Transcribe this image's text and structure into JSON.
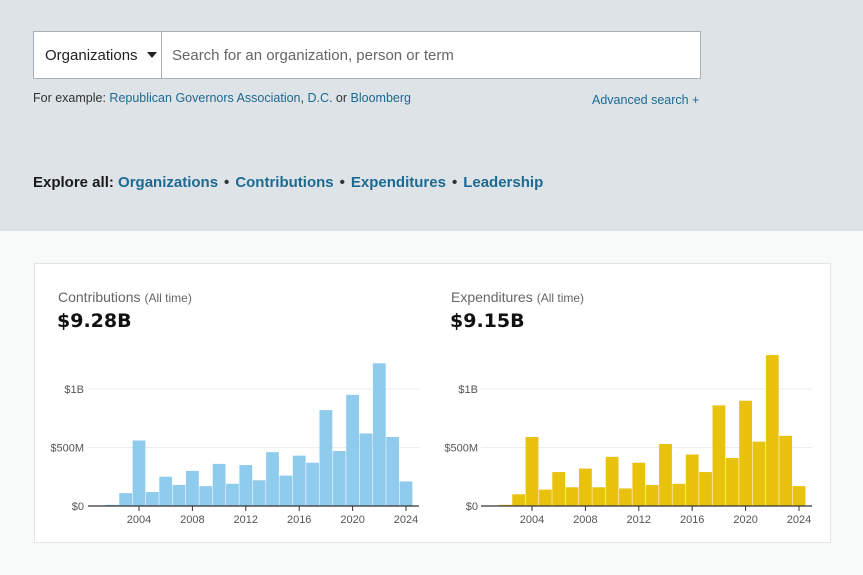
{
  "search": {
    "type_label": "Organizations",
    "placeholder": "Search for an organization, person or term",
    "value": "",
    "examples_prefix": "For example: ",
    "example_1": "Republican Governors Association",
    "sep_comma": ", ",
    "example_2": "D.C.",
    "sep_or": " or ",
    "example_3": "Bloomberg",
    "advanced_label": "Advanced search +"
  },
  "explore": {
    "label": "Explore all: ",
    "links": [
      "Organizations",
      "Contributions",
      "Expenditures",
      "Leadership"
    ],
    "separator": "•"
  },
  "colors": {
    "contributions": "#8fcbec",
    "expenditures": "#e8c20c",
    "link": "#1d6a93"
  },
  "chart_data": [
    {
      "type": "bar",
      "title": "Contributions",
      "subtitle": "(All time)",
      "total": "$9.28B",
      "xlabel": "",
      "ylabel": "",
      "unit": "billions USD",
      "ylim": [
        0,
        1.3
      ],
      "grid": true,
      "yticks": [
        0,
        0.5,
        1.0
      ],
      "ytick_labels": [
        "$0",
        "$500M",
        "$1B"
      ],
      "xticks": [
        2004,
        2008,
        2012,
        2016,
        2020,
        2024
      ],
      "xtick_labels": [
        "2004",
        "2008",
        "2012",
        "2016",
        "2020",
        "2024"
      ],
      "categories": [
        2002,
        2003,
        2004,
        2005,
        2006,
        2007,
        2008,
        2009,
        2010,
        2011,
        2012,
        2013,
        2014,
        2015,
        2016,
        2017,
        2018,
        2019,
        2020,
        2021,
        2022,
        2023,
        2024
      ],
      "values": [
        0.01,
        0.11,
        0.56,
        0.12,
        0.25,
        0.18,
        0.3,
        0.17,
        0.36,
        0.19,
        0.35,
        0.22,
        0.46,
        0.26,
        0.43,
        0.37,
        0.82,
        0.47,
        0.95,
        0.62,
        1.22,
        0.59,
        0.21
      ]
    },
    {
      "type": "bar",
      "title": "Expenditures",
      "subtitle": "(All time)",
      "total": "$9.15B",
      "xlabel": "",
      "ylabel": "",
      "unit": "billions USD",
      "ylim": [
        0,
        1.3
      ],
      "grid": true,
      "yticks": [
        0,
        0.5,
        1.0
      ],
      "ytick_labels": [
        "$0",
        "$500M",
        "$1B"
      ],
      "xticks": [
        2004,
        2008,
        2012,
        2016,
        2020,
        2024
      ],
      "xtick_labels": [
        "2004",
        "2008",
        "2012",
        "2016",
        "2020",
        "2024"
      ],
      "categories": [
        2002,
        2003,
        2004,
        2005,
        2006,
        2007,
        2008,
        2009,
        2010,
        2011,
        2012,
        2013,
        2014,
        2015,
        2016,
        2017,
        2018,
        2019,
        2020,
        2021,
        2022,
        2023,
        2024
      ],
      "values": [
        0.01,
        0.1,
        0.59,
        0.14,
        0.29,
        0.16,
        0.32,
        0.16,
        0.42,
        0.15,
        0.37,
        0.18,
        0.53,
        0.19,
        0.44,
        0.29,
        0.86,
        0.41,
        0.9,
        0.55,
        1.29,
        0.6,
        0.17
      ]
    }
  ]
}
